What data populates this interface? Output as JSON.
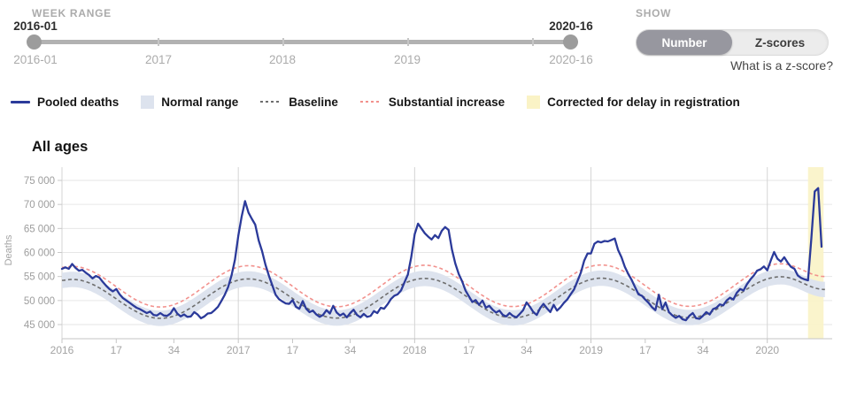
{
  "week_range": {
    "label": "WEEK RANGE",
    "start_value": "2016-01",
    "end_value": "2020-16",
    "axis_labels": [
      "2016-01",
      "2017",
      "2018",
      "2019",
      "2020-16"
    ]
  },
  "show_toggle": {
    "label": "SHOW",
    "options": [
      "Number",
      "Z-scores"
    ],
    "selected": "Number",
    "help_link": "What is a z-score?"
  },
  "legend": {
    "items": [
      {
        "label": "Pooled deaths",
        "swatch": "line",
        "color": "#2b3a9a"
      },
      {
        "label": "Normal range",
        "swatch": "box",
        "color": "#dde3ee"
      },
      {
        "label": "Baseline",
        "swatch": "dash",
        "color": "#6e6e6e"
      },
      {
        "label": "Substantial increase",
        "swatch": "dash",
        "color": "#f2918d"
      },
      {
        "label": "Corrected for delay in registration",
        "swatch": "box",
        "color": "#faf3c6"
      }
    ]
  },
  "section_title": "All ages",
  "chart_data": {
    "type": "line",
    "title": "All ages",
    "ylabel": "Deaths",
    "x_unit": "ISO weeks from 2016-01 to 2020-16",
    "x_total_weeks": 225,
    "ylim": [
      45000,
      75000
    ],
    "grid": true,
    "y_ticks": [
      {
        "value": 45000,
        "label": "45 000"
      },
      {
        "value": 50000,
        "label": "50 000"
      },
      {
        "value": 55000,
        "label": "55 000"
      },
      {
        "value": 60000,
        "label": "60 000"
      },
      {
        "value": 65000,
        "label": "65 000"
      },
      {
        "value": 70000,
        "label": "70 000"
      },
      {
        "value": 75000,
        "label": "75 000"
      }
    ],
    "x_ticks": [
      {
        "week": 0,
        "label": "2016",
        "is_year": true
      },
      {
        "week": 16,
        "label": "17",
        "is_year": false
      },
      {
        "week": 33,
        "label": "34",
        "is_year": false
      },
      {
        "week": 52,
        "label": "2017",
        "is_year": true
      },
      {
        "week": 68,
        "label": "17",
        "is_year": false
      },
      {
        "week": 85,
        "label": "34",
        "is_year": false
      },
      {
        "week": 104,
        "label": "2018",
        "is_year": true
      },
      {
        "week": 120,
        "label": "17",
        "is_year": false
      },
      {
        "week": 137,
        "label": "34",
        "is_year": false
      },
      {
        "week": 156,
        "label": "2019",
        "is_year": true
      },
      {
        "week": 172,
        "label": "17",
        "is_year": false
      },
      {
        "week": 189,
        "label": "34",
        "is_year": false
      },
      {
        "week": 208,
        "label": "2020",
        "is_year": true
      }
    ],
    "series": [
      {
        "name": "Pooled deaths",
        "type": "line",
        "color": "#2b3a9a",
        "values": [
          56600,
          56900,
          56600,
          57600,
          56800,
          56200,
          56400,
          55800,
          55300,
          54600,
          55100,
          54800,
          53900,
          53100,
          52400,
          51900,
          52400,
          51300,
          50500,
          50000,
          49500,
          49000,
          48500,
          48200,
          47800,
          47400,
          47700,
          47000,
          46900,
          47400,
          46900,
          46800,
          47300,
          48400,
          47300,
          46700,
          47100,
          46600,
          46700,
          47600,
          47100,
          46300,
          46700,
          47300,
          47400,
          48000,
          48700,
          49900,
          51200,
          52800,
          55200,
          58500,
          63500,
          67500,
          70700,
          68300,
          67000,
          65800,
          62500,
          60300,
          57500,
          55200,
          53200,
          51200,
          50300,
          49800,
          49400,
          49300,
          50100,
          48700,
          48300,
          49900,
          48300,
          47600,
          47900,
          47100,
          46600,
          47000,
          48000,
          47300,
          48900,
          47500,
          46900,
          47300,
          46500,
          47400,
          48100,
          47000,
          46500,
          47200,
          46600,
          46800,
          47800,
          47400,
          48500,
          48300,
          49200,
          50300,
          51000,
          51300,
          52100,
          53800,
          55400,
          59000,
          63800,
          66000,
          65000,
          64000,
          63300,
          62700,
          63600,
          63000,
          64500,
          65300,
          64700,
          60600,
          57700,
          55500,
          54000,
          52100,
          50900,
          49700,
          50100,
          49100,
          50000,
          48500,
          48900,
          48100,
          47500,
          47900,
          47000,
          46700,
          47400,
          46800,
          46500,
          47200,
          48000,
          49600,
          48700,
          47600,
          47000,
          48400,
          49300,
          48400,
          47600,
          49100,
          47900,
          48600,
          49500,
          50200,
          51300,
          52300,
          54000,
          55800,
          58300,
          59800,
          59800,
          61800,
          62300,
          62100,
          62400,
          62300,
          62600,
          62900,
          60500,
          59000,
          57000,
          55500,
          54300,
          52800,
          51300,
          51000,
          50200,
          49500,
          48600,
          48000,
          51200,
          48200,
          49600,
          47600,
          46900,
          46400,
          46800,
          46100,
          45900,
          46800,
          47400,
          46300,
          46200,
          46800,
          47600,
          47100,
          48200,
          48500,
          49200,
          49000,
          50000,
          50600,
          50200,
          51600,
          52400,
          52100,
          53400,
          54400,
          55200,
          56200,
          56500,
          57100,
          56300,
          58300,
          60100,
          58700,
          58100,
          59000,
          57900,
          57000,
          56600,
          55200,
          54700,
          54400,
          54200,
          63000,
          72700,
          73400,
          61200
        ]
      },
      {
        "name": "Baseline",
        "type": "dashed",
        "color": "#6e6e6e",
        "anchors": [
          [
            0,
            54200
          ],
          [
            3,
            54400
          ],
          [
            29,
            46300
          ],
          [
            55,
            54500
          ],
          [
            81,
            46350
          ],
          [
            107,
            54600
          ],
          [
            133,
            46400
          ],
          [
            159,
            54650
          ],
          [
            185,
            46450
          ],
          [
            212,
            54950
          ],
          [
            225,
            52300
          ]
        ]
      },
      {
        "name": "Substantial increase",
        "type": "dashed",
        "color": "#f2918d",
        "anchors": [
          [
            0,
            56900
          ],
          [
            3,
            57100
          ],
          [
            29,
            48650
          ],
          [
            55,
            57250
          ],
          [
            81,
            48700
          ],
          [
            107,
            57350
          ],
          [
            133,
            48750
          ],
          [
            159,
            57400
          ],
          [
            185,
            48800
          ],
          [
            212,
            57650
          ],
          [
            225,
            55000
          ]
        ]
      }
    ],
    "normal_range": {
      "name": "Normal range",
      "based_on": "Baseline",
      "halfwidth": 1600,
      "color": "#dde3ee"
    },
    "corrected_band": {
      "name": "Corrected for delay in registration",
      "from_week": 220,
      "to_week": 223.8,
      "color": "#faf3c6"
    }
  }
}
